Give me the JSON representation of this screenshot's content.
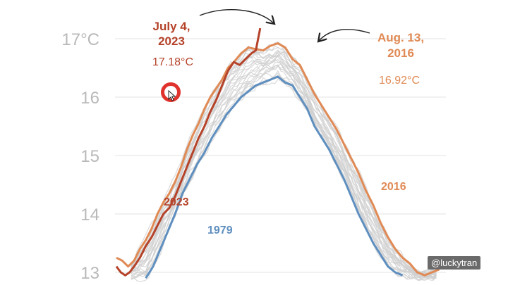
{
  "chart_data": {
    "type": "line",
    "xlabel": "",
    "ylabel": "",
    "ylim": [
      12.9,
      17.3
    ],
    "y_ticks": [
      {
        "value": 17,
        "label": "17°C"
      },
      {
        "value": 16,
        "label": "16"
      },
      {
        "value": 15,
        "label": "15"
      },
      {
        "value": 14,
        "label": "14"
      },
      {
        "value": 13,
        "label": "13"
      }
    ],
    "grid": true,
    "background_years_color": "#cfcfcf",
    "series": [
      {
        "name": "2023",
        "color": "#b5432a",
        "points": [
          [
            0,
            13.1
          ],
          [
            3,
            13.0
          ],
          [
            6,
            12.95
          ],
          [
            9,
            13.0
          ],
          [
            12,
            13.1
          ],
          [
            16,
            13.25
          ],
          [
            20,
            13.45
          ],
          [
            24,
            13.6
          ],
          [
            28,
            13.8
          ],
          [
            32,
            14.0
          ],
          [
            36,
            14.1
          ],
          [
            40,
            14.3
          ],
          [
            44,
            14.55
          ],
          [
            48,
            14.8
          ],
          [
            52,
            15.05
          ],
          [
            56,
            15.3
          ],
          [
            60,
            15.5
          ],
          [
            64,
            15.75
          ],
          [
            68,
            15.95
          ],
          [
            72,
            16.2
          ],
          [
            76,
            16.45
          ],
          [
            80,
            16.6
          ],
          [
            84,
            16.55
          ],
          [
            88,
            16.65
          ],
          [
            92,
            16.75
          ],
          [
            95,
            16.8
          ],
          [
            98,
            17.18
          ]
        ]
      },
      {
        "name": "2016",
        "color": "#e08a55",
        "points": [
          [
            0,
            13.25
          ],
          [
            4,
            13.2
          ],
          [
            8,
            13.1
          ],
          [
            12,
            13.2
          ],
          [
            16,
            13.4
          ],
          [
            20,
            13.55
          ],
          [
            24,
            13.75
          ],
          [
            28,
            14.0
          ],
          [
            32,
            14.2
          ],
          [
            36,
            14.35
          ],
          [
            40,
            14.55
          ],
          [
            44,
            14.8
          ],
          [
            48,
            15.1
          ],
          [
            52,
            15.35
          ],
          [
            56,
            15.55
          ],
          [
            60,
            15.8
          ],
          [
            64,
            16.0
          ],
          [
            68,
            16.15
          ],
          [
            72,
            16.3
          ],
          [
            76,
            16.5
          ],
          [
            80,
            16.6
          ],
          [
            85,
            16.75
          ],
          [
            90,
            16.85
          ],
          [
            95,
            16.82
          ],
          [
            100,
            16.8
          ],
          [
            105,
            16.88
          ],
          [
            110,
            16.92
          ],
          [
            115,
            16.85
          ],
          [
            120,
            16.65
          ],
          [
            125,
            16.55
          ],
          [
            130,
            16.3
          ],
          [
            135,
            16.05
          ],
          [
            140,
            15.85
          ],
          [
            145,
            15.65
          ],
          [
            150,
            15.45
          ],
          [
            155,
            15.2
          ],
          [
            160,
            14.95
          ],
          [
            165,
            14.7
          ],
          [
            170,
            14.4
          ],
          [
            175,
            14.15
          ],
          [
            180,
            13.85
          ],
          [
            185,
            13.6
          ],
          [
            190,
            13.4
          ],
          [
            195,
            13.25
          ],
          [
            200,
            13.15
          ],
          [
            205,
            13.0
          ],
          [
            210,
            12.95
          ],
          [
            215,
            13.0
          ],
          [
            220,
            13.05
          ]
        ]
      },
      {
        "name": "1979",
        "color": "#5f8fbf",
        "points": [
          [
            20,
            12.9
          ],
          [
            25,
            13.1
          ],
          [
            30,
            13.4
          ],
          [
            35,
            13.7
          ],
          [
            40,
            14.0
          ],
          [
            45,
            14.35
          ],
          [
            50,
            14.6
          ],
          [
            55,
            14.85
          ],
          [
            60,
            15.05
          ],
          [
            65,
            15.3
          ],
          [
            70,
            15.5
          ],
          [
            75,
            15.7
          ],
          [
            80,
            15.85
          ],
          [
            85,
            16.0
          ],
          [
            90,
            16.1
          ],
          [
            95,
            16.2
          ],
          [
            100,
            16.25
          ],
          [
            105,
            16.3
          ],
          [
            110,
            16.35
          ],
          [
            115,
            16.25
          ],
          [
            120,
            16.2
          ],
          [
            125,
            16.0
          ],
          [
            130,
            15.8
          ],
          [
            135,
            15.5
          ],
          [
            140,
            15.3
          ],
          [
            145,
            15.1
          ],
          [
            150,
            14.85
          ],
          [
            155,
            14.6
          ],
          [
            160,
            14.3
          ],
          [
            165,
            14.0
          ],
          [
            170,
            13.75
          ],
          [
            175,
            13.5
          ],
          [
            180,
            13.3
          ],
          [
            185,
            13.1
          ],
          [
            190,
            13.0
          ],
          [
            195,
            12.95
          ]
        ]
      }
    ],
    "annotations": [
      {
        "title_line1": "July 4,",
        "title_line2": "2023",
        "value": "17.18°C",
        "color": "#b5432a"
      },
      {
        "title_line1": "Aug. 13,",
        "title_line2": "2016",
        "value": "16.92°C",
        "color": "#e08a55"
      }
    ],
    "series_labels": [
      {
        "text": "2023",
        "color": "#b5432a"
      },
      {
        "text": "2016",
        "color": "#e08a55"
      },
      {
        "text": "1979",
        "color": "#5f8fbf"
      }
    ]
  },
  "watermark": "@luckytran"
}
